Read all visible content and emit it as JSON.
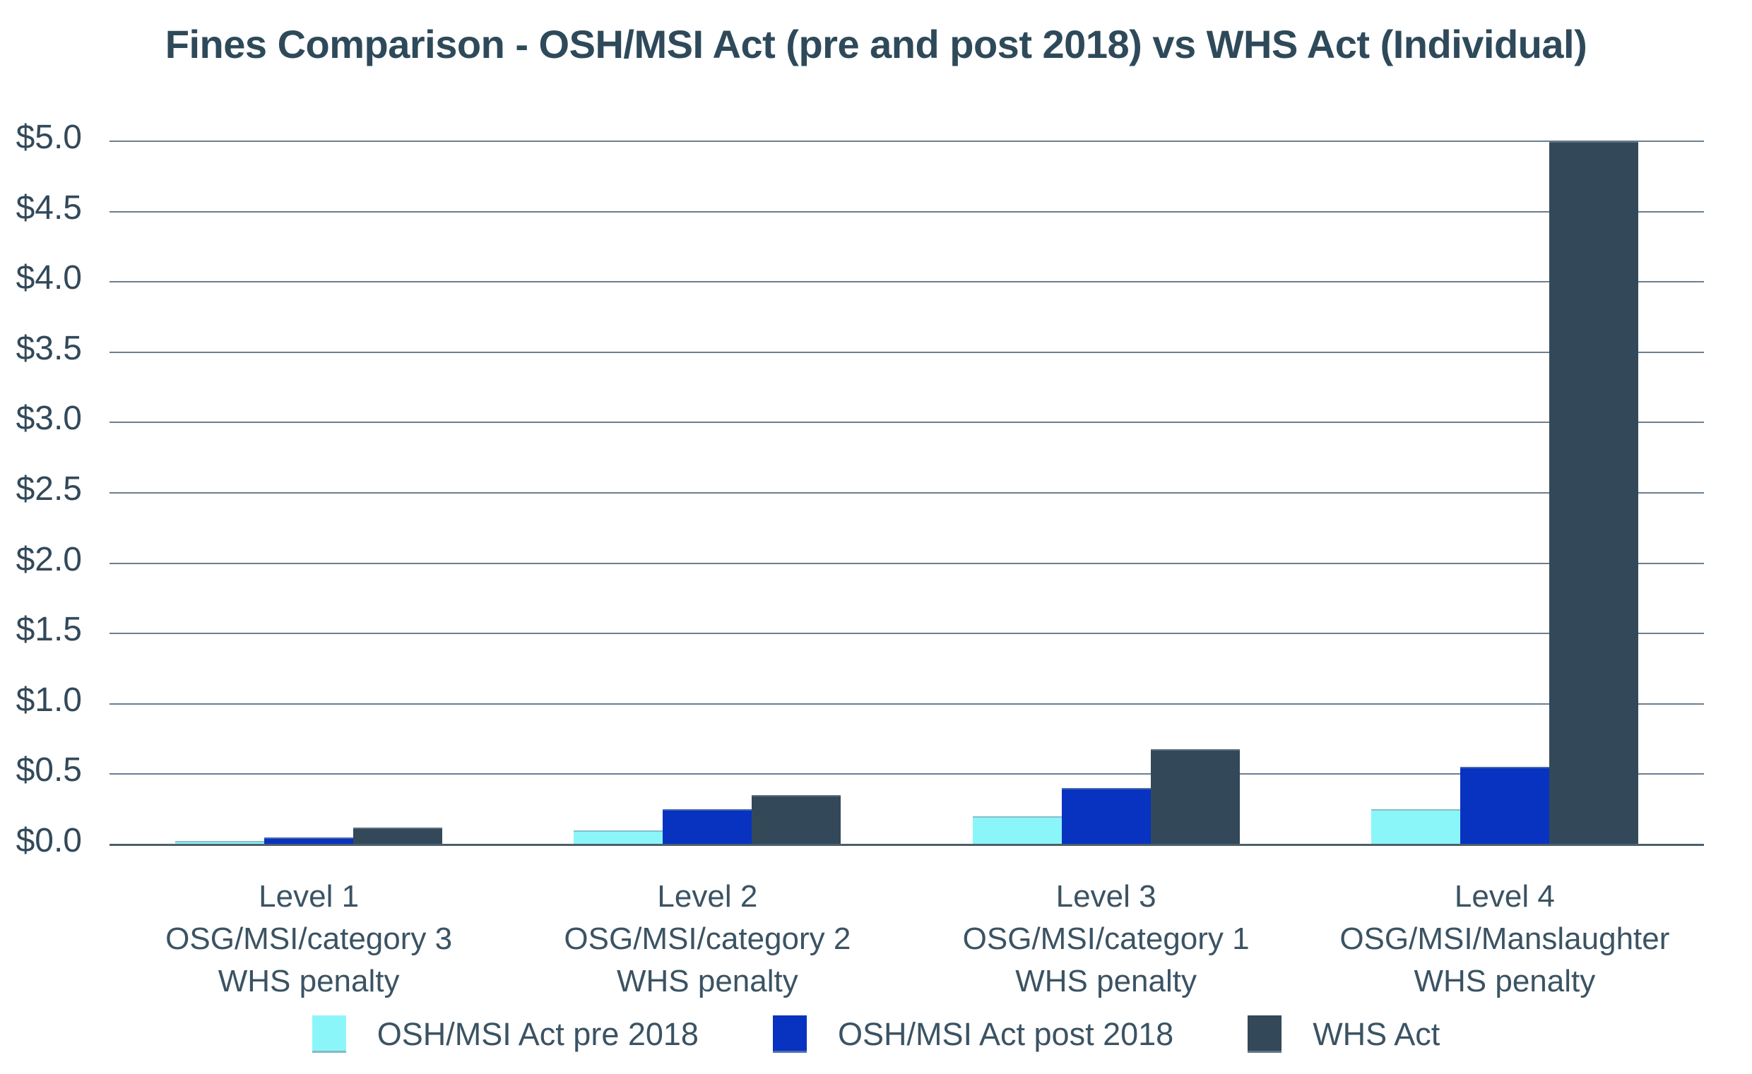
{
  "chart_data": {
    "type": "bar",
    "title": "Fines Comparison - OSH/MSI Act (pre and post 2018) vs WHS Act (Individual)",
    "categories": [
      [
        "Level 1",
        "OSG/MSI/category 3",
        "WHS penalty"
      ],
      [
        "Level 2",
        "OSG/MSI/category 2",
        "WHS penalty"
      ],
      [
        "Level 3",
        "OSG/MSI/category 1",
        "WHS penalty"
      ],
      [
        "Level 4",
        "OSG/MSI/Manslaughter",
        "WHS penalty"
      ]
    ],
    "series": [
      {
        "name": "OSH/MSI Act pre 2018",
        "color": "#8bf6fa",
        "values": [
          0.025,
          0.1,
          0.2,
          0.25
        ]
      },
      {
        "name": "OSH/MSI Act post 2018",
        "color": "#0733c0",
        "values": [
          0.05,
          0.25,
          0.4,
          0.55
        ]
      },
      {
        "name": "WHS Act",
        "color": "#33495a",
        "values": [
          0.12,
          0.35,
          0.68,
          5.0
        ]
      }
    ],
    "y_axis": {
      "min": 0,
      "max": 5,
      "step": 0.5,
      "tick_labels": [
        "$0.0",
        "$0.5",
        "$1.0",
        "$1.5",
        "$2.0",
        "$2.5",
        "$3.0",
        "$3.5",
        "$4.0",
        "$4.5",
        "$5.0"
      ]
    },
    "legend": {
      "position": "bottom",
      "entries": [
        "OSH/MSI Act pre 2018",
        "OSH/MSI Act post 2018",
        "WHS Act"
      ]
    },
    "grid": true,
    "colors": {
      "background": "#ffffff",
      "title_text": "#2e4a5a",
      "axis_text": "#32495a",
      "gridline": "#6b7f90",
      "baseline": "#4d5f6b"
    }
  }
}
